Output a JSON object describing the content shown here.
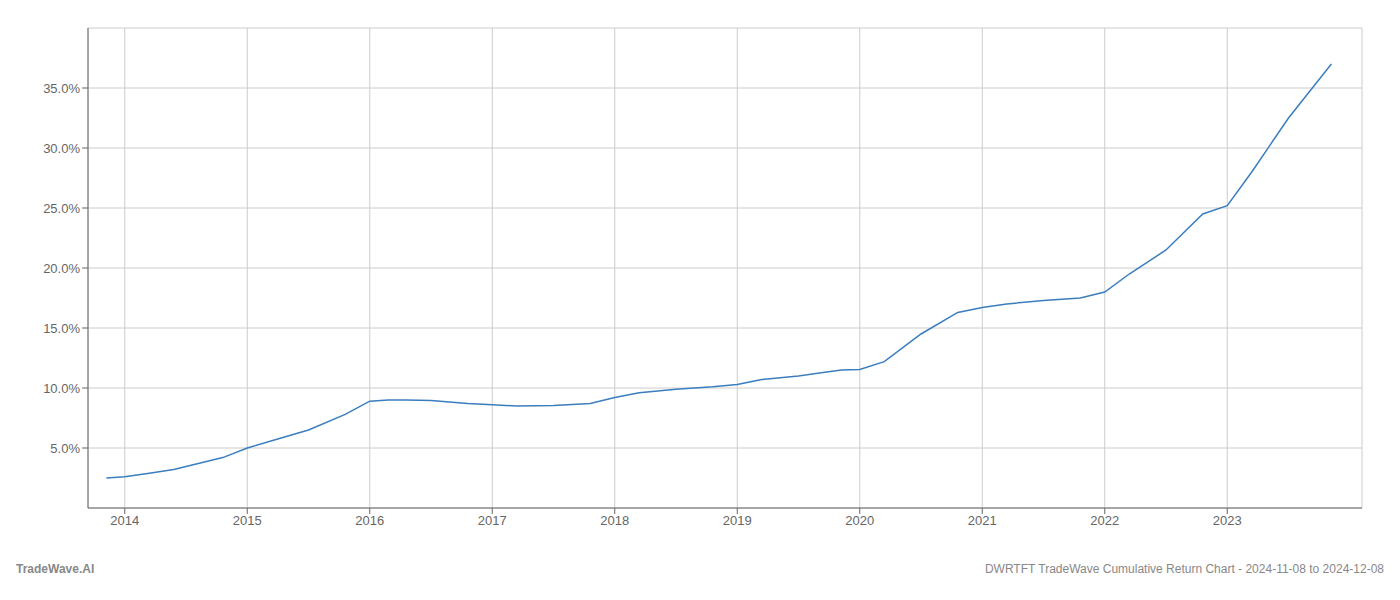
{
  "chart_data": {
    "type": "line",
    "x": [
      2013.85,
      2014.0,
      2014.2,
      2014.4,
      2014.6,
      2014.8,
      2015.0,
      2015.2,
      2015.5,
      2015.8,
      2016.0,
      2016.15,
      2016.3,
      2016.5,
      2016.8,
      2017.0,
      2017.2,
      2017.5,
      2017.8,
      2018.0,
      2018.2,
      2018.5,
      2018.8,
      2019.0,
      2019.2,
      2019.5,
      2019.7,
      2019.85,
      2020.0,
      2020.2,
      2020.5,
      2020.8,
      2021.0,
      2021.2,
      2021.5,
      2021.8,
      2022.0,
      2022.2,
      2022.5,
      2022.8,
      2023.0,
      2023.2,
      2023.5,
      2023.85
    ],
    "values": [
      2.5,
      2.6,
      2.9,
      3.2,
      3.7,
      4.2,
      5.0,
      5.6,
      6.5,
      7.8,
      8.9,
      9.0,
      9.0,
      8.95,
      8.7,
      8.6,
      8.5,
      8.55,
      8.7,
      9.2,
      9.6,
      9.9,
      10.1,
      10.3,
      10.7,
      11.0,
      11.3,
      11.5,
      11.55,
      12.2,
      14.5,
      16.3,
      16.7,
      17.0,
      17.3,
      17.5,
      18.0,
      19.5,
      21.5,
      24.5,
      25.2,
      28.0,
      32.5,
      37.0
    ],
    "color": "#3a7ebf",
    "xlim": [
      2013.7,
      2024.1
    ],
    "ylim": [
      0,
      40
    ],
    "xticks": [
      2014,
      2015,
      2016,
      2017,
      2018,
      2019,
      2020,
      2021,
      2022,
      2023
    ],
    "yticks": [
      {
        "value": 5.0,
        "label": "5.0%"
      },
      {
        "value": 10.0,
        "label": "10.0%"
      },
      {
        "value": 15.0,
        "label": "15.0%"
      },
      {
        "value": 20.0,
        "label": "20.0%"
      },
      {
        "value": 25.0,
        "label": "25.0%"
      },
      {
        "value": 30.0,
        "label": "30.0%"
      },
      {
        "value": 35.0,
        "label": "35.0%"
      }
    ],
    "grid": true,
    "annotations": [
      "TradeWave.AI",
      "DWRTFT TradeWave Cumulative Return Chart - 2024-11-08 to 2024-12-08"
    ]
  }
}
